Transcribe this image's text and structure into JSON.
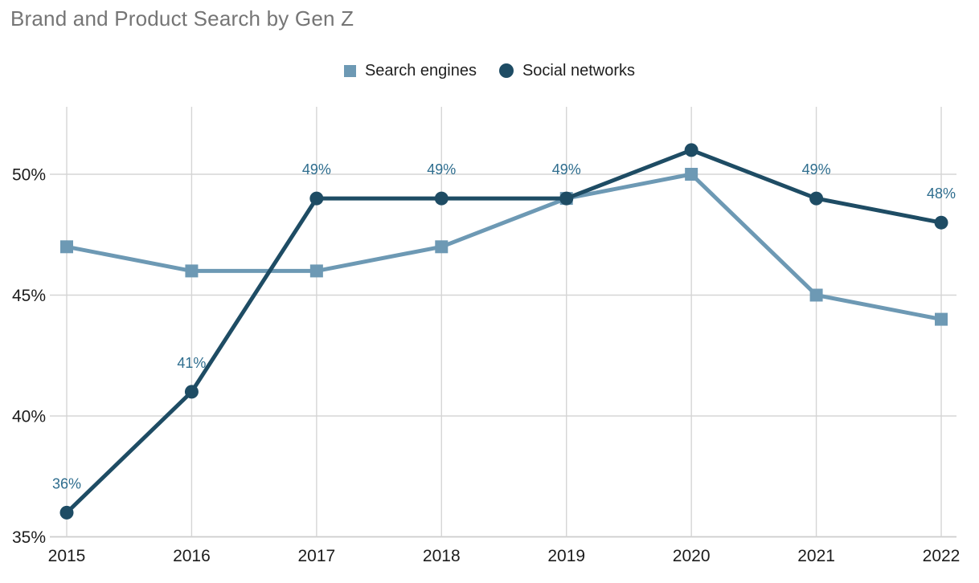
{
  "chart_data": {
    "type": "line",
    "title": "Brand and Product Search by Gen Z",
    "x": [
      "2015",
      "2016",
      "2017",
      "2018",
      "2019",
      "2020",
      "2021",
      "2022"
    ],
    "series": [
      {
        "name": "Search engines",
        "marker": "square",
        "color": "#6d99b4",
        "values": [
          47,
          46,
          46,
          47,
          49,
          50,
          45,
          44
        ],
        "point_labels": [
          "",
          "",
          "",
          "",
          "",
          "",
          "",
          ""
        ]
      },
      {
        "name": "Social networks",
        "marker": "circle",
        "color": "#1e4c64",
        "values": [
          36,
          41,
          49,
          49,
          49,
          51,
          49,
          48
        ],
        "point_labels": [
          "36%",
          "41%",
          "49%",
          "49%",
          "49%",
          "",
          "49%",
          "48%"
        ]
      }
    ],
    "yticks": [
      {
        "value": 35,
        "label": "35%"
      },
      {
        "value": 40,
        "label": "40%"
      },
      {
        "value": 45,
        "label": "45%"
      },
      {
        "value": 50,
        "label": "50%"
      }
    ],
    "ylim": [
      35,
      52.8
    ],
    "xlabel": "",
    "ylabel": "",
    "grid": true,
    "legend_position": "top-center",
    "colors": {
      "title": "#757575",
      "axis_text": "#1c1c1c",
      "grid": "#d5d5d5",
      "axis_line": "#cccccc",
      "data_label": "#2e6d8e",
      "background": "#ffffff"
    }
  }
}
